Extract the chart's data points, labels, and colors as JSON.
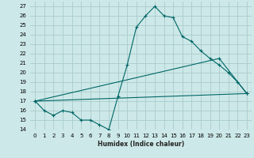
{
  "xlabel": "Humidex (Indice chaleur)",
  "background_color": "#cde8e8",
  "grid_color": "#a8cccc",
  "line_color": "#006666",
  "xlim": [
    -0.5,
    23.5
  ],
  "ylim": [
    14,
    27.5
  ],
  "yticks": [
    14,
    15,
    16,
    17,
    18,
    19,
    20,
    21,
    22,
    23,
    24,
    25,
    26,
    27
  ],
  "xticks": [
    0,
    1,
    2,
    3,
    4,
    5,
    6,
    7,
    8,
    9,
    10,
    11,
    12,
    13,
    14,
    15,
    16,
    17,
    18,
    19,
    20,
    21,
    22,
    23
  ],
  "line1_x": [
    0,
    1,
    2,
    3,
    4,
    5,
    6,
    7,
    8,
    9,
    10,
    11,
    12,
    13,
    14,
    15,
    16,
    17,
    18,
    19,
    20,
    21,
    22,
    23
  ],
  "line1_y": [
    17.0,
    16.0,
    15.5,
    16.0,
    15.8,
    15.0,
    15.0,
    14.5,
    14.0,
    17.5,
    20.8,
    24.8,
    26.0,
    27.0,
    26.0,
    25.8,
    23.8,
    23.3,
    22.3,
    21.5,
    20.8,
    20.0,
    19.0,
    17.8
  ],
  "line2_x": [
    0,
    20,
    23
  ],
  "line2_y": [
    17.0,
    21.5,
    17.8
  ],
  "line3_x": [
    0,
    23
  ],
  "line3_y": [
    17.0,
    17.8
  ],
  "marker": "+"
}
